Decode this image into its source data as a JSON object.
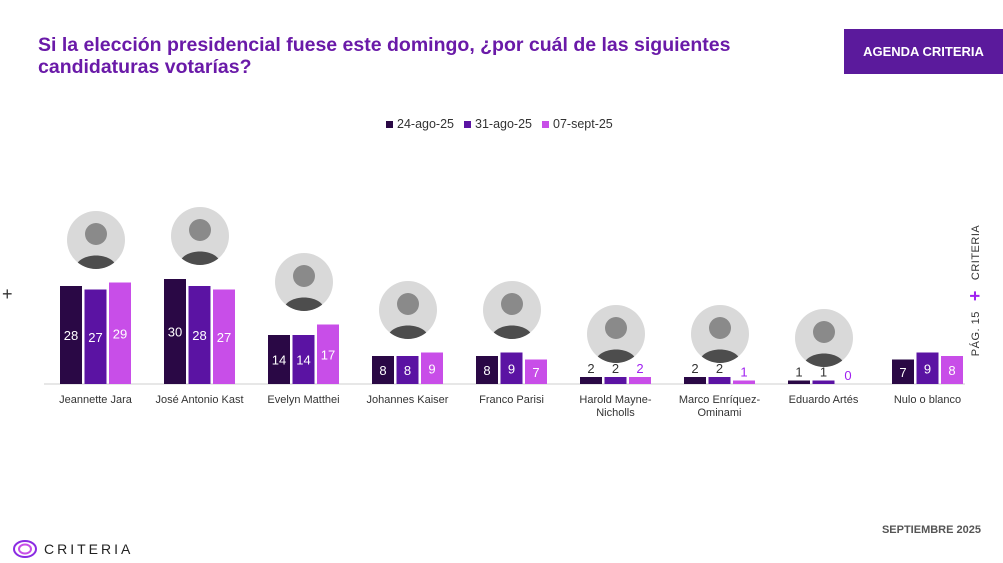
{
  "header": {
    "title": "Si la elección presidencial fuese este domingo, ¿por cuál de las siguientes candidaturas votarías?",
    "badge": "AGENDA CRITERIA"
  },
  "side": {
    "brand": "CRITERIA",
    "page": "PÁG. 15"
  },
  "footer": {
    "date": "SEPTIEMBRE 2025",
    "logo_text": "CRITERIA"
  },
  "colors": {
    "accent": "#5b1a9c",
    "series1": "#2a0845",
    "series2": "#5b13a3",
    "series3": "#c84ee8"
  },
  "chart_data": {
    "type": "bar",
    "categories": [
      "Jeannette Jara",
      "José Antonio Kast",
      "Evelyn Matthei",
      "Johannes Kaiser",
      "Franco Parisi",
      "Harold Mayne-Nicholls",
      "Marco Enríquez-Ominami",
      "Eduardo Artés",
      "Nulo o blanco"
    ],
    "series": [
      {
        "name": "24-ago-25",
        "color": "#2a0845",
        "values": [
          28,
          30,
          14,
          8,
          8,
          2,
          2,
          1,
          7
        ]
      },
      {
        "name": "31-ago-25",
        "color": "#5b13a3",
        "values": [
          27,
          28,
          14,
          8,
          9,
          2,
          2,
          1,
          9
        ]
      },
      {
        "name": "07-sept-25",
        "color": "#c84ee8",
        "values": [
          29,
          27,
          17,
          9,
          7,
          2,
          1,
          0,
          8
        ]
      }
    ],
    "legend": "top-center",
    "grid": false
  }
}
